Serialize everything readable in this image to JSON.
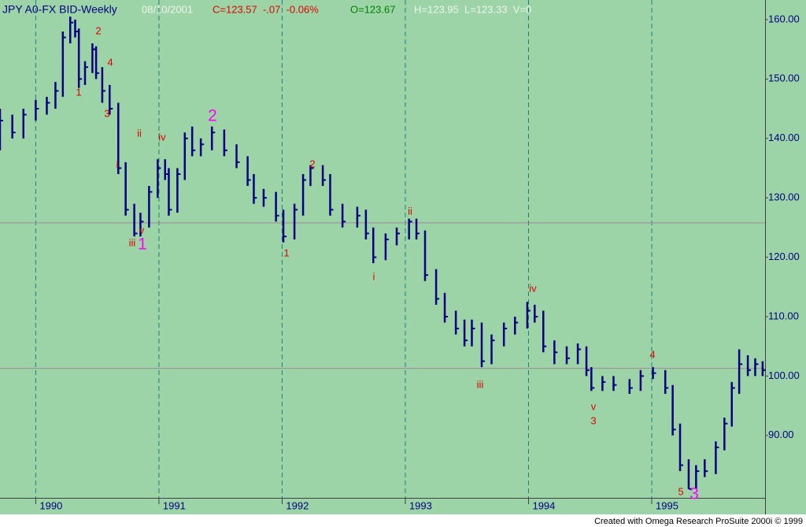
{
  "chart_data": {
    "type": "ohlc",
    "title": "JPY A0-FX BID-Weekly",
    "date": "08/10/2001",
    "close_info": "C=123.57  -.07  -0.06%",
    "open_info": "O=123.67",
    "range_info": "H=123.95  L=123.33  V=0",
    "footer": "Created with Omega Research ProSuite 2000i © 1999",
    "color": "#000080",
    "x": [
      1989.71,
      1989.81,
      1989.9,
      1990.0,
      1990.09,
      1990.16,
      1990.22,
      1990.28,
      1990.32,
      1990.35,
      1990.4,
      1990.46,
      1990.49,
      1990.54,
      1990.6,
      1990.67,
      1990.73,
      1990.8,
      1990.85,
      1990.92,
      1990.99,
      1991.05,
      1991.08,
      1991.15,
      1991.21,
      1991.27,
      1991.34,
      1991.43,
      1991.53,
      1991.63,
      1991.72,
      1991.77,
      1991.85,
      1991.95,
      1992.01,
      1992.1,
      1992.17,
      1992.23,
      1992.33,
      1992.39,
      1992.49,
      1992.61,
      1992.68,
      1992.74,
      1992.84,
      1992.93,
      1993.03,
      1993.09,
      1993.16,
      1993.25,
      1993.32,
      1993.41,
      1993.48,
      1993.54,
      1993.62,
      1993.7,
      1993.8,
      1993.89,
      1993.99,
      1994.05,
      1994.12,
      1994.21,
      1994.31,
      1994.4,
      1994.47,
      1994.51,
      1994.6,
      1994.69,
      1994.82,
      1994.91,
      1995.01,
      1995.11,
      1995.17,
      1995.23,
      1995.3,
      1995.36,
      1995.43,
      1995.52,
      1995.59,
      1995.65,
      1995.71,
      1995.78,
      1995.84,
      1995.9
    ],
    "high": [
      145,
      144,
      145,
      146.5,
      147,
      149.5,
      158,
      160.5,
      160,
      158.5,
      153,
      156,
      155.5,
      152,
      149,
      146,
      136,
      129,
      127.5,
      132,
      136.5,
      136.5,
      135,
      135,
      141,
      142,
      140,
      142,
      141.5,
      139,
      137,
      134,
      131.5,
      131,
      128,
      129,
      134,
      135.5,
      135.5,
      134,
      129,
      128.5,
      128,
      125,
      124,
      125,
      126.5,
      126.5,
      124.5,
      118,
      114,
      111,
      109.5,
      109.5,
      109,
      107,
      109,
      110,
      112.5,
      112,
      111,
      106,
      105,
      105.5,
      105,
      101.5,
      100,
      100,
      99.5,
      101,
      101.5,
      101,
      98.5,
      92,
      86,
      85,
      86,
      89,
      93,
      99,
      104.5,
      103.5,
      103,
      102.5
    ],
    "low": [
      138,
      140,
      140,
      143,
      144,
      145,
      147,
      156,
      157,
      148.5,
      149,
      151,
      150,
      146,
      144,
      134,
      127,
      123.5,
      123.5,
      125,
      130,
      133,
      127,
      127.5,
      133,
      137,
      137,
      138,
      137,
      135,
      132,
      129,
      128.5,
      126,
      122.5,
      123,
      127,
      132,
      132,
      127,
      125,
      125,
      123,
      119,
      119.5,
      122,
      123,
      123,
      116,
      112,
      109,
      107,
      105,
      105,
      101.5,
      102,
      105,
      107,
      108,
      109,
      104,
      102,
      102,
      102,
      100,
      97.5,
      97.5,
      97.5,
      97,
      97.5,
      99.5,
      97,
      90,
      84,
      81,
      81,
      83,
      83.5,
      87.5,
      91.5,
      97,
      100,
      100,
      100
    ],
    "close": [
      143,
      141,
      144,
      145,
      146,
      148,
      157,
      159.5,
      158,
      150,
      152,
      155,
      151,
      148,
      145,
      135,
      128,
      124,
      126,
      131,
      135,
      134,
      128,
      134,
      140,
      138,
      139,
      141,
      138,
      136,
      133,
      130,
      130,
      127,
      123.5,
      128,
      133,
      135,
      133,
      128,
      126,
      127,
      124,
      120,
      123,
      124,
      126,
      124,
      117,
      113,
      110,
      108,
      106,
      108,
      102.5,
      106,
      108,
      109,
      111,
      110,
      105,
      104,
      103,
      104.5,
      101,
      98,
      99,
      98.5,
      98,
      100,
      100.5,
      98,
      91,
      85,
      81,
      84,
      84,
      88,
      92,
      98,
      102,
      101,
      102,
      101
    ],
    "xlim": [
      1989.71,
      1995.92
    ],
    "xticks": [
      1990,
      1991,
      1992,
      1993,
      1994,
      1995
    ],
    "ylim": [
      79.5,
      163.3
    ],
    "yticks": [
      {
        "value": 160,
        "label": "160.00"
      },
      {
        "value": 150,
        "label": "150.00"
      },
      {
        "value": 140,
        "label": "140.00"
      },
      {
        "value": 130,
        "label": "130.00"
      },
      {
        "value": 120,
        "label": "120.00"
      },
      {
        "value": 110,
        "label": "110.00"
      },
      {
        "value": 100,
        "label": "100.00"
      },
      {
        "value": 90,
        "label": "90.00"
      }
    ],
    "hlines": [
      125.8,
      101.3
    ],
    "hline_color": "#a08898",
    "grid_color": "#1a7f7f",
    "annotations": [
      {
        "text": "1",
        "color": "#e00000"
      },
      {
        "text": "2",
        "color": "#e00000"
      },
      {
        "text": "4",
        "color": "#e00000"
      },
      {
        "text": "3",
        "color": "#e00000"
      },
      {
        "text": "ii",
        "color": "#e00000"
      },
      {
        "text": "iv",
        "color": "#e00000"
      },
      {
        "text": "i",
        "color": "#e00000"
      },
      {
        "text": "2",
        "color": "#ff00ff"
      },
      {
        "text": "v",
        "color": "#e00000"
      },
      {
        "text": "iii",
        "color": "#e00000"
      },
      {
        "text": "1",
        "color": "#ff00ff"
      },
      {
        "text": "2",
        "color": "#e00000"
      },
      {
        "text": "1",
        "color": "#e00000"
      },
      {
        "text": "ii",
        "color": "#e00000"
      },
      {
        "text": "i",
        "color": "#e00000"
      },
      {
        "text": "iii",
        "color": "#e00000"
      },
      {
        "text": "iv",
        "color": "#e00000"
      },
      {
        "text": "v",
        "color": "#e00000"
      },
      {
        "text": "3",
        "color": "#e00000"
      },
      {
        "text": "4",
        "color": "#e00000"
      },
      {
        "text": "5",
        "color": "#e00000"
      },
      {
        "text": "3",
        "color": "#ff00ff"
      }
    ]
  }
}
